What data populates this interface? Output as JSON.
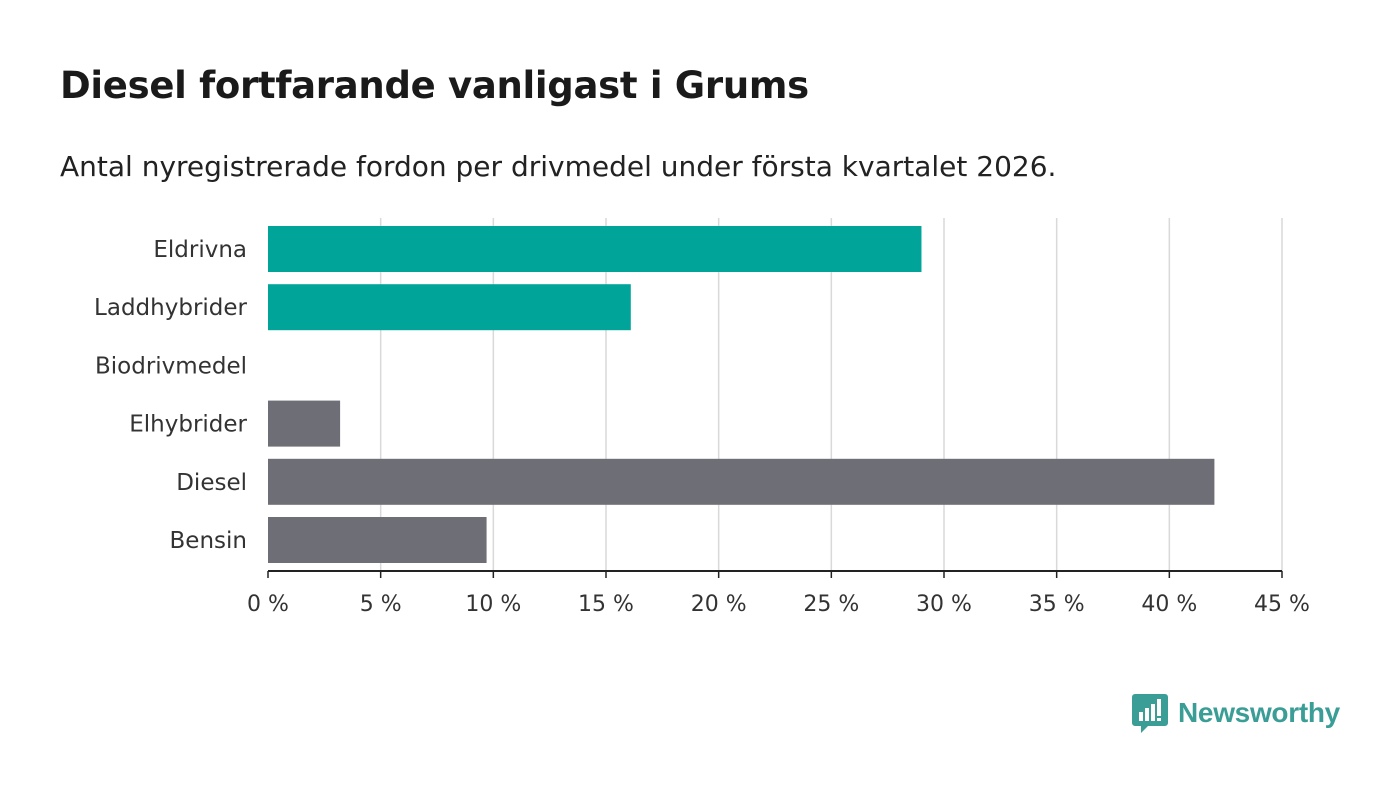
{
  "header": {
    "title": "Diesel fortfarande vanligast i Grums",
    "subtitle": "Antal nyregistrerade fordon per drivmedel under första kvartalet 2026."
  },
  "chart_data": {
    "type": "bar",
    "orientation": "horizontal",
    "title": "Diesel fortfarande vanligast i Grums",
    "subtitle": "Antal nyregistrerade fordon per drivmedel under första kvartalet 2026.",
    "categories": [
      "Eldrivna",
      "Laddhybrider",
      "Biodrivmedel",
      "Elhybrider",
      "Diesel",
      "Bensin"
    ],
    "values": [
      29.0,
      16.1,
      0,
      3.2,
      42.0,
      9.7
    ],
    "bar_colors": [
      "#00a499",
      "#00a499",
      "#00a499",
      "#6e6e76",
      "#6e6e76",
      "#6e6e76"
    ],
    "xlim": [
      0,
      45
    ],
    "xticks": [
      0,
      5,
      10,
      15,
      20,
      25,
      30,
      35,
      40,
      45
    ],
    "xtick_labels": [
      "0 %",
      "5 %",
      "10 %",
      "15 %",
      "20 %",
      "25 %",
      "30 %",
      "35 %",
      "40 %",
      "45 %"
    ],
    "xlabel": "",
    "ylabel": "",
    "grid": true
  },
  "brand": {
    "name": "Newsworthy",
    "color": "#3a9e96",
    "icon": "newsworthy-logo-icon"
  }
}
